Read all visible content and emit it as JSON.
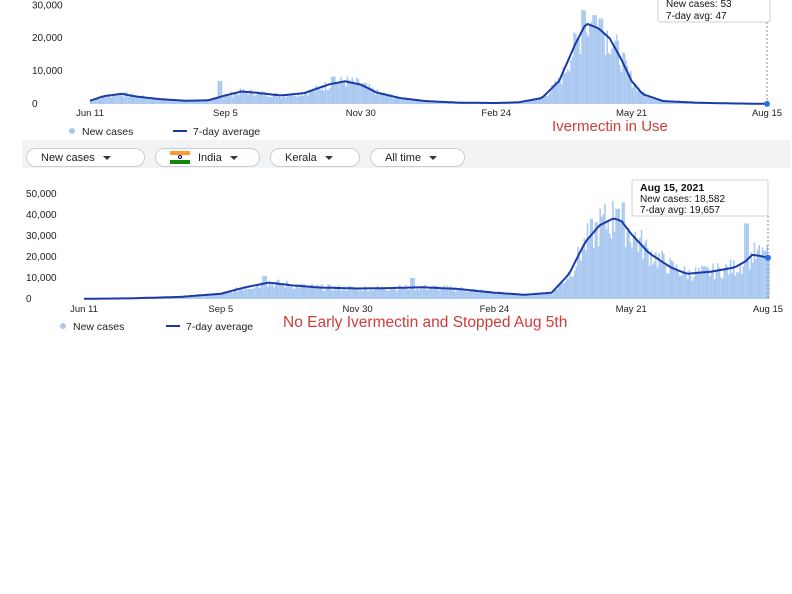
{
  "colors": {
    "bar": "#a9c8f0",
    "line": "#1a3aa8",
    "annotation": "#d13b3b",
    "cursor": "#8a8a8a",
    "endpoint": "#2f6fe0"
  },
  "filters": {
    "metric": "New cases",
    "country": "India",
    "region": "Kerala",
    "range": "All time"
  },
  "chart_data": [
    {
      "type": "bar",
      "name": "top-chart",
      "series": [
        {
          "name": "New cases",
          "kind": "bar"
        },
        {
          "name": "7-day average",
          "kind": "line"
        }
      ],
      "legend": [
        "New cases",
        "7-day average"
      ],
      "xlabel": "",
      "ylabel": "",
      "x_ticks": [
        "Jun 11",
        "Sep 5",
        "Nov 30",
        "Feb 24",
        "May 21",
        "Aug 15"
      ],
      "y_ticks": [
        "30,000",
        "20,000",
        "10,000",
        "0"
      ],
      "ylim": [
        0,
        31000
      ],
      "annotation": "Ivermectin in Use",
      "tooltip": {
        "date": "",
        "new_cases": "New cases: 53",
        "avg": "7-day avg: 47"
      },
      "avg_points": [
        [
          "Jun 11",
          1000
        ],
        [
          "Jun 20",
          2400
        ],
        [
          "Jul 1",
          3100
        ],
        [
          "Jul 10",
          2300
        ],
        [
          "Jul 25",
          1500
        ],
        [
          "Aug 10",
          1000
        ],
        [
          "Aug 25",
          1100
        ],
        [
          "Sep 5",
          2600
        ],
        [
          "Sep 15",
          3800
        ],
        [
          "Sep 25",
          3400
        ],
        [
          "Oct 10",
          2600
        ],
        [
          "Oct 25",
          3300
        ],
        [
          "Nov 10",
          6000
        ],
        [
          "Nov 20",
          6900
        ],
        [
          "Nov 30",
          5900
        ],
        [
          "Dec 10",
          3500
        ],
        [
          "Dec 25",
          1800
        ],
        [
          "Jan 10",
          900
        ],
        [
          "Feb 1",
          400
        ],
        [
          "Feb 24",
          300
        ],
        [
          "Mar 10",
          500
        ],
        [
          "Mar 25",
          1800
        ],
        [
          "Apr 5",
          7000
        ],
        [
          "Apr 15",
          18000
        ],
        [
          "Apr 22",
          24500
        ],
        [
          "Apr 30",
          23000
        ],
        [
          "May 7",
          20000
        ],
        [
          "May 14",
          14000
        ],
        [
          "May 21",
          7000
        ],
        [
          "May 28",
          3000
        ],
        [
          "Jun 10",
          900
        ],
        [
          "Jul 1",
          400
        ],
        [
          "Jul 20",
          200
        ],
        [
          "Aug 15",
          47
        ]
      ],
      "bar_peaks": [
        [
          "Sep 1",
          7000
        ],
        [
          "Nov 12",
          8300
        ],
        [
          "Apr 20",
          28500
        ],
        [
          "Apr 27",
          27000
        ],
        [
          "May 1",
          26000
        ]
      ]
    },
    {
      "type": "bar",
      "name": "bottom-chart",
      "series": [
        {
          "name": "New cases",
          "kind": "bar"
        },
        {
          "name": "7-day average",
          "kind": "line"
        }
      ],
      "legend": [
        "New cases",
        "7-day average"
      ],
      "xlabel": "",
      "ylabel": "",
      "x_ticks": [
        "Jun 11",
        "Sep 5",
        "Nov 30",
        "Feb 24",
        "May 21",
        "Aug 15"
      ],
      "y_ticks": [
        "50,000",
        "40,000",
        "30,000",
        "20,000",
        "10,000",
        "0"
      ],
      "ylim": [
        0,
        50000
      ],
      "annotation": "No Early Ivermectin and Stopped Aug 5th",
      "tooltip": {
        "date": "Aug 15, 2021",
        "new_cases": "New cases: 18,582",
        "avg": "7-day avg: 19,657"
      },
      "avg_points": [
        [
          "Jun 11",
          100
        ],
        [
          "Jul 10",
          300
        ],
        [
          "Aug 10",
          1000
        ],
        [
          "Sep 5",
          2500
        ],
        [
          "Sep 20",
          5500
        ],
        [
          "Oct 5",
          7800
        ],
        [
          "Oct 20",
          6500
        ],
        [
          "Nov 5",
          5500
        ],
        [
          "Nov 30",
          5000
        ],
        [
          "Dec 20",
          5200
        ],
        [
          "Jan 10",
          5600
        ],
        [
          "Feb 1",
          4800
        ],
        [
          "Feb 24",
          3000
        ],
        [
          "Mar 15",
          2000
        ],
        [
          "Apr 1",
          3000
        ],
        [
          "Apr 12",
          12000
        ],
        [
          "Apr 22",
          27000
        ],
        [
          "May 1",
          35000
        ],
        [
          "May 10",
          38500
        ],
        [
          "May 15",
          37000
        ],
        [
          "May 21",
          31000
        ],
        [
          "Jun 1",
          22000
        ],
        [
          "Jun 15",
          15000
        ],
        [
          "Jun 25",
          12000
        ],
        [
          "Jul 10",
          13000
        ],
        [
          "Jul 25",
          15000
        ],
        [
          "Aug 1",
          18000
        ],
        [
          "Aug 5",
          21000
        ],
        [
          "Aug 10",
          20500
        ],
        [
          "Aug 15",
          19657
        ]
      ],
      "bar_peaks": [
        [
          "Oct 2",
          11000
        ],
        [
          "Jan 3",
          10000
        ],
        [
          "May 12",
          43000
        ],
        [
          "Aug 1",
          36000
        ],
        [
          "Aug 12",
          23000
        ]
      ]
    }
  ]
}
